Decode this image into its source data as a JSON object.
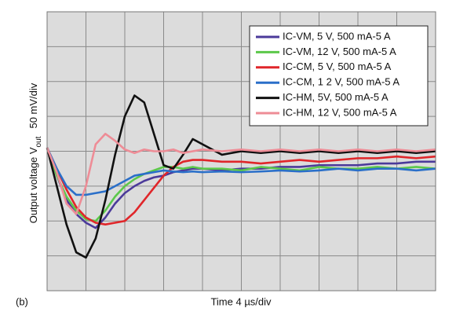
{
  "chart_data": {
    "type": "line",
    "panel_label": "(b)",
    "xlabel": "Time 4 µs/div",
    "ylabel": "Output voltage V",
    "ylabel_sub": "out",
    "ylabel_scale": "50 mV/div",
    "xlim": [
      0,
      10
    ],
    "ylim": [
      0,
      8
    ],
    "xticks": [
      0,
      1,
      2,
      3,
      4,
      5,
      6,
      7,
      8,
      9,
      10
    ],
    "yticks": [
      0,
      1,
      2,
      3,
      4,
      5,
      6,
      7,
      8
    ],
    "grid": true,
    "legend": "upper right",
    "x": [
      0,
      0.25,
      0.5,
      0.75,
      1,
      1.25,
      1.5,
      1.75,
      2,
      2.25,
      2.5,
      2.75,
      3,
      3.25,
      3.5,
      3.75,
      4,
      4.5,
      5,
      5.5,
      6,
      6.5,
      7,
      7.5,
      8,
      8.5,
      9,
      9.5,
      10
    ],
    "series": [
      {
        "name": "IC-VM, 5 V, 500 mA-5 A",
        "color": "#4b3a9a",
        "values": [
          4.1,
          3.3,
          2.6,
          2.2,
          1.95,
          1.8,
          2.1,
          2.5,
          2.8,
          3.0,
          3.15,
          3.25,
          3.3,
          3.4,
          3.45,
          3.5,
          3.5,
          3.45,
          3.5,
          3.5,
          3.55,
          3.55,
          3.6,
          3.6,
          3.6,
          3.65,
          3.65,
          3.7,
          3.7
        ]
      },
      {
        "name": "IC-VM, 12 V, 500 mA-5 A",
        "color": "#5cc84a",
        "values": [
          4.1,
          3.3,
          2.7,
          2.3,
          2.05,
          2.0,
          2.3,
          2.7,
          3.0,
          3.2,
          3.35,
          3.45,
          3.55,
          3.55,
          3.5,
          3.55,
          3.5,
          3.5,
          3.45,
          3.55,
          3.5,
          3.45,
          3.55,
          3.5,
          3.5,
          3.55,
          3.5,
          3.55,
          3.5
        ]
      },
      {
        "name": "IC-CM, 5 V, 500 mA-5 A",
        "color": "#e0262a",
        "values": [
          4.1,
          3.5,
          2.9,
          2.4,
          2.1,
          1.95,
          1.9,
          1.95,
          2.0,
          2.25,
          2.6,
          2.95,
          3.3,
          3.55,
          3.7,
          3.75,
          3.75,
          3.7,
          3.7,
          3.65,
          3.7,
          3.75,
          3.7,
          3.75,
          3.8,
          3.8,
          3.85,
          3.8,
          3.85
        ]
      },
      {
        "name": "IC-CM, 1 2 V, 500 mA-5 A",
        "color": "#2a6fc9",
        "values": [
          4.1,
          3.5,
          3.0,
          2.75,
          2.75,
          2.8,
          2.85,
          3.0,
          3.15,
          3.3,
          3.35,
          3.4,
          3.45,
          3.42,
          3.4,
          3.42,
          3.4,
          3.42,
          3.4,
          3.42,
          3.45,
          3.42,
          3.45,
          3.5,
          3.45,
          3.5,
          3.5,
          3.45,
          3.5
        ]
      },
      {
        "name": "IC-HM, 5V, 500 mA-5 A",
        "color": "#111111",
        "values": [
          4.1,
          3.0,
          1.9,
          1.1,
          0.95,
          1.5,
          2.6,
          3.9,
          5.0,
          5.6,
          5.4,
          4.5,
          3.6,
          3.5,
          3.9,
          4.35,
          4.2,
          3.9,
          4.0,
          3.95,
          4.0,
          3.95,
          4.0,
          3.95,
          4.0,
          3.95,
          4.0,
          3.95,
          4.0
        ]
      },
      {
        "name": "IC-HM, 12 V, 500 mA-5 A",
        "color": "#ee8c96",
        "values": [
          4.1,
          3.4,
          2.5,
          2.2,
          3.0,
          4.2,
          4.5,
          4.3,
          4.05,
          3.95,
          4.05,
          4.0,
          4.0,
          4.05,
          3.95,
          4.0,
          4.05,
          4.0,
          4.05,
          4.0,
          4.05,
          4.0,
          4.05,
          4.0,
          4.05,
          4.0,
          4.05,
          4.0,
          4.05
        ]
      }
    ]
  }
}
